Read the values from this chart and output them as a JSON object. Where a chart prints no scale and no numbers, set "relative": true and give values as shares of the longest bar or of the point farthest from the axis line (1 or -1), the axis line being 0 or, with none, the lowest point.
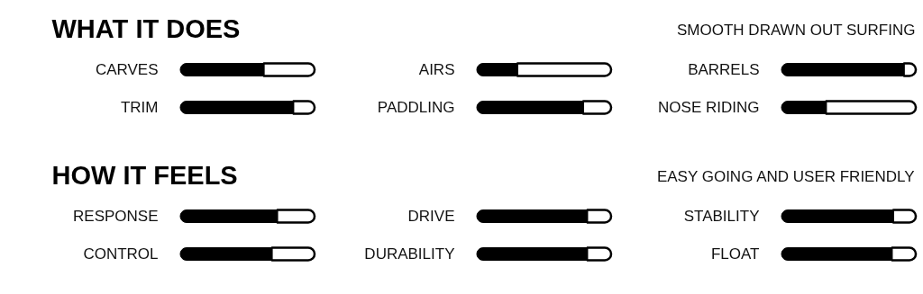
{
  "chart_data": [
    {
      "type": "bar",
      "orientation": "horizontal",
      "relative": true,
      "stacked": true,
      "title": "WHAT IT DOES",
      "categories": [
        "CARVES",
        "TRIM"
      ],
      "series": [
        {
          "color": "#000000",
          "values": [
            0.62,
            0.84
          ]
        },
        {
          "color": "#ffffff",
          "values": [
            0.38,
            0.16
          ]
        }
      ]
    },
    {
      "type": "bar",
      "orientation": "horizontal",
      "relative": true,
      "stacked": true,
      "categories": [
        "AIRS",
        "PADDLING"
      ],
      "series": [
        {
          "color": "#000000",
          "values": [
            0.3,
            0.79
          ]
        },
        {
          "color": "#ffffff",
          "values": [
            0.7,
            0.21
          ]
        }
      ]
    },
    {
      "type": "bar",
      "orientation": "horizontal",
      "relative": true,
      "stacked": true,
      "subtitle": "SMOOTH  DRAWN OUT SURFING",
      "categories": [
        "BARRELS",
        "NOSE RIDING"
      ],
      "series": [
        {
          "color": "#000000",
          "values": [
            0.91,
            0.33
          ]
        },
        {
          "color": "#ffffff",
          "values": [
            0.09,
            0.67
          ]
        }
      ]
    },
    {
      "type": "bar",
      "orientation": "horizontal",
      "relative": true,
      "stacked": true,
      "title": "HOW IT FEELS",
      "categories": [
        "RESPONSE",
        "CONTROL"
      ],
      "series": [
        {
          "color": "#000000",
          "values": [
            0.72,
            0.68
          ]
        },
        {
          "color": "#ffffff",
          "values": [
            0.28,
            0.32
          ]
        }
      ]
    },
    {
      "type": "bar",
      "orientation": "horizontal",
      "relative": true,
      "stacked": true,
      "categories": [
        "DRIVE",
        "DURABILITY"
      ],
      "series": [
        {
          "color": "#000000",
          "values": [
            0.82,
            0.82
          ]
        },
        {
          "color": "#ffffff",
          "values": [
            0.18,
            0.18
          ]
        }
      ]
    },
    {
      "type": "bar",
      "orientation": "horizontal",
      "relative": true,
      "stacked": true,
      "subtitle": "EASY GOING AND USER  FRIENDLY",
      "categories": [
        "STABILITY",
        "FLOAT"
      ],
      "series": [
        {
          "color": "#000000",
          "values": [
            0.83,
            0.82
          ]
        },
        {
          "color": "#ffffff",
          "values": [
            0.17,
            0.18
          ]
        }
      ]
    }
  ]
}
